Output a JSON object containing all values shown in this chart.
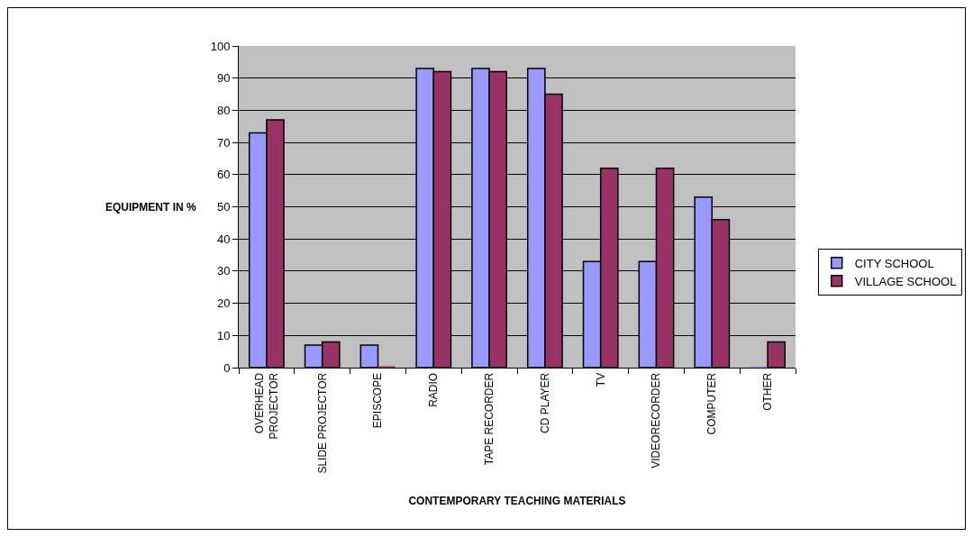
{
  "chart_data": {
    "type": "bar",
    "xlabel": "CONTEMPORARY TEACHING MATERIALS",
    "ylabel": "EQUIPMENT IN %",
    "categories": [
      "OVERHEAD PROJECTOR",
      "SLIDE PROJECTOR",
      "EPISCOPE",
      "RADIO",
      "TAPE RECORDER",
      "CD PLAYER",
      "TV",
      "VIDEORECORDER",
      "COMPUTER",
      "OTHER"
    ],
    "series": [
      {
        "name": "CITY SCHOOL",
        "color": "#9999ff",
        "values": [
          73,
          7,
          7,
          93,
          93,
          93,
          33,
          33,
          53,
          0
        ]
      },
      {
        "name": "VILLAGE SCHOOL",
        "color": "#993366",
        "values": [
          77,
          8,
          0,
          92,
          92,
          85,
          62,
          62,
          46,
          8
        ]
      }
    ],
    "ylim": [
      0,
      100
    ],
    "yticks": [
      0,
      10,
      20,
      30,
      40,
      50,
      60,
      70,
      80,
      90,
      100
    ],
    "grid": "y",
    "legend": "right"
  }
}
